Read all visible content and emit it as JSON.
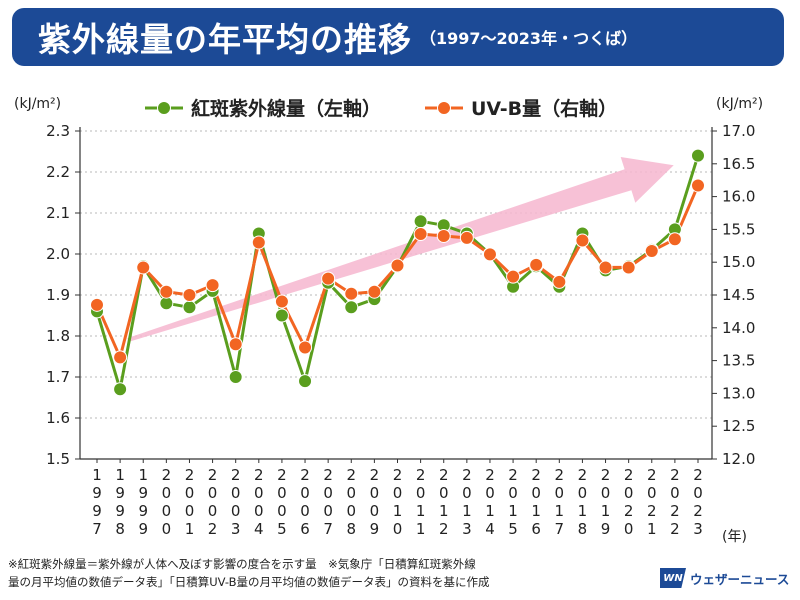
{
  "header": {
    "title": "紫外線量の年平均の推移",
    "subtitle": "（1997〜2023年・つくば）"
  },
  "chart_data": {
    "type": "line",
    "y_left_unit": "(kJ/m²)",
    "y_right_unit": "(kJ/m²)",
    "x_unit": "(年)",
    "ylim_left": [
      1.5,
      2.3
    ],
    "ylim_right": [
      12.0,
      17.0
    ],
    "yticks_left": [
      "1.5",
      "1.6",
      "1.7",
      "1.8",
      "1.9",
      "2.0",
      "2.1",
      "2.2",
      "2.3"
    ],
    "yticks_right": [
      "12.0",
      "12.5",
      "13.0",
      "13.5",
      "14.0",
      "14.5",
      "15.0",
      "15.5",
      "16.0",
      "16.5",
      "17.0"
    ],
    "categories": [
      "1997",
      "1998",
      "1999",
      "2000",
      "2001",
      "2002",
      "2003",
      "2004",
      "2005",
      "2006",
      "2007",
      "2008",
      "2009",
      "2010",
      "2011",
      "2012",
      "2013",
      "2014",
      "2015",
      "2016",
      "2017",
      "2018",
      "2019",
      "2020",
      "2021",
      "2022",
      "2023"
    ],
    "grid": "horizontal dotted",
    "legend_position": "top-left",
    "series": [
      {
        "name": "紅斑紫外線量（左軸）",
        "axis": "left",
        "color": "#5a9e1e",
        "values": [
          1.86,
          1.67,
          1.97,
          1.88,
          1.87,
          1.91,
          1.7,
          2.05,
          1.85,
          1.69,
          1.93,
          1.87,
          1.89,
          1.97,
          2.08,
          2.07,
          2.05,
          2.0,
          1.92,
          1.97,
          1.92,
          2.05,
          1.96,
          1.97,
          2.01,
          2.06,
          2.24
        ]
      },
      {
        "name": "UV-B量（右軸）",
        "axis": "right",
        "color": "#f26522",
        "values": [
          14.35,
          13.55,
          14.92,
          14.55,
          14.5,
          14.65,
          13.75,
          15.3,
          14.4,
          13.7,
          14.75,
          14.52,
          14.55,
          14.95,
          15.43,
          15.4,
          15.37,
          15.12,
          14.78,
          14.96,
          14.7,
          15.33,
          14.92,
          14.92,
          15.17,
          15.35,
          16.17
        ]
      }
    ]
  },
  "footnote": {
    "line1": "※紅斑紫外線量＝紫外線が人体へ及ぼす影響の度合を示す量　※気象庁「日積算紅斑紫外線",
    "line2": "量の月平均値の数値データ表」「日積算UV-B量の月平均値の数値データ表」の資料を基に作成"
  },
  "brand": {
    "logo_text": "WN",
    "name": "ウェザーニュース",
    "color": "#1c4a96"
  }
}
